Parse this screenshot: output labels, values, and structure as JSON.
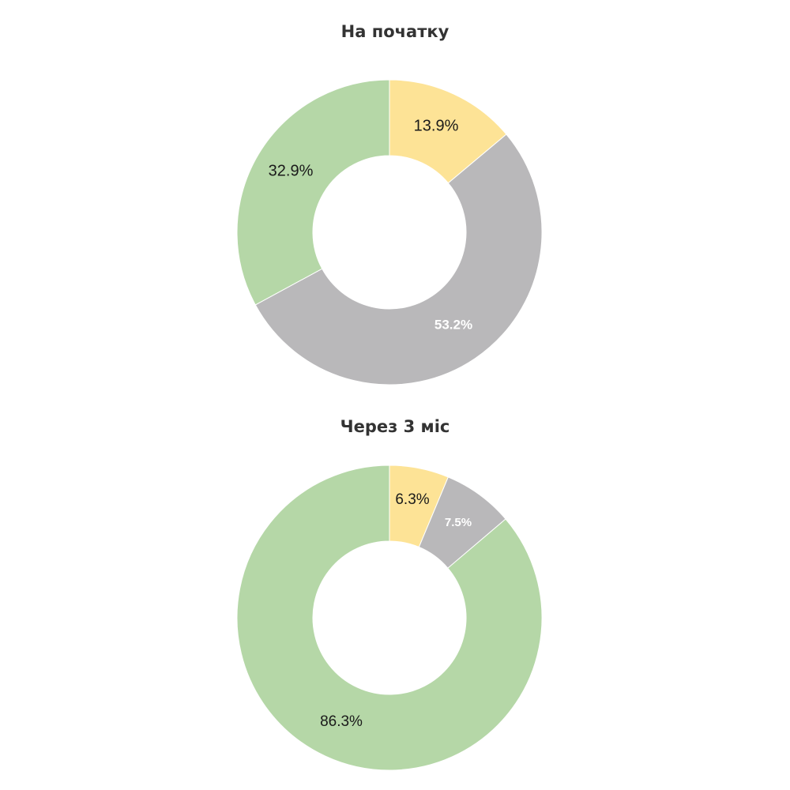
{
  "colors": {
    "yellow": "#fde396",
    "gray": "#b9b8ba",
    "green": "#b5d7a7"
  },
  "chart_data": [
    {
      "type": "pie",
      "title": "На початку",
      "slices": [
        {
          "label": "13.9%",
          "value": 13.9,
          "color": "yellow",
          "label_color": "#1a1a1a"
        },
        {
          "label": "53.2%",
          "value": 53.2,
          "color": "gray",
          "label_color": "#ffffff"
        },
        {
          "label": "32.9%",
          "value": 32.9,
          "color": "green",
          "label_color": "#1a1a1a"
        }
      ]
    },
    {
      "type": "pie",
      "title": "Через 3 міс",
      "slices": [
        {
          "label": "6.3%",
          "value": 6.3,
          "color": "yellow",
          "label_color": "#1a1a1a"
        },
        {
          "label": "7.5%",
          "value": 7.5,
          "color": "gray",
          "label_color": "#ffffff"
        },
        {
          "label": "86.3%",
          "value": 86.3,
          "color": "green",
          "label_color": "#1a1a1a"
        }
      ]
    }
  ]
}
